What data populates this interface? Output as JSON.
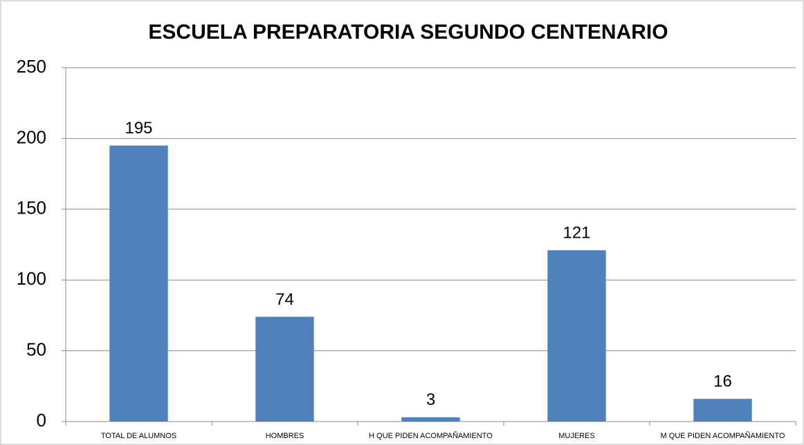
{
  "chart_data": {
    "type": "bar",
    "title": "ESCUELA PREPARATORIA SEGUNDO CENTENARIO",
    "categories": [
      "TOTAL DE ALUMNOS",
      "HOMBRES",
      "H QUE PIDEN ACOMPAÑAMIENTO",
      "MUJERES",
      "M QUE PIDEN ACOMPAÑAMIENTO"
    ],
    "values": [
      195,
      74,
      3,
      121,
      16
    ],
    "color": "#4f81bd",
    "ylim": [
      0,
      250
    ],
    "yticks": [
      0,
      50,
      100,
      150,
      200,
      250
    ],
    "grid": true,
    "data_labels": true
  }
}
